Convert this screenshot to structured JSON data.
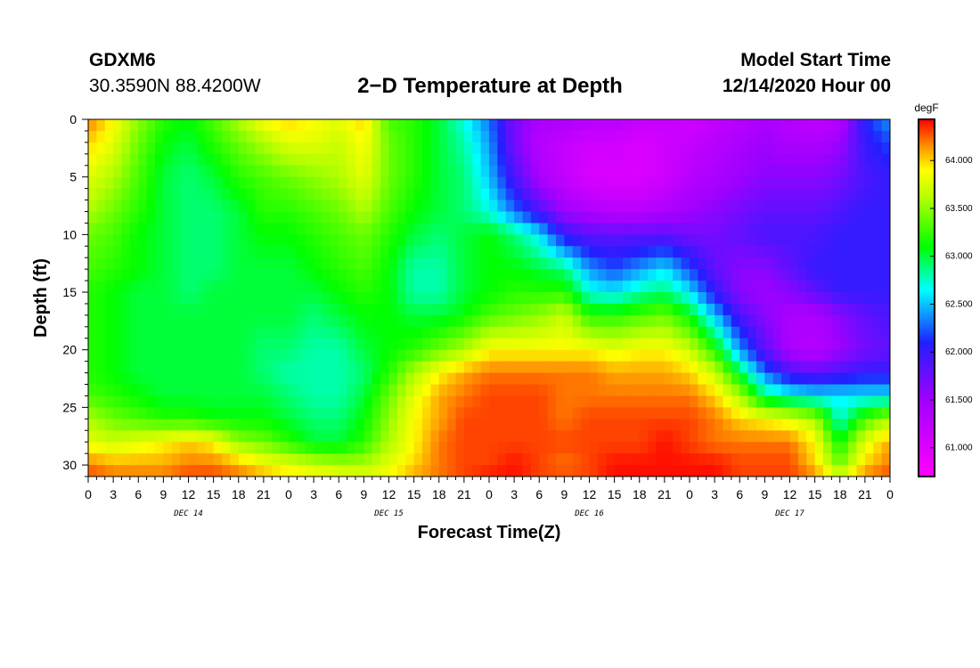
{
  "header": {
    "station": "GDXM6",
    "coords": "30.3590N 88.4200W",
    "title": "2−D Temperature at Depth",
    "start_label": "Model Start Time",
    "start_value": "12/14/2020 Hour 00"
  },
  "chart_data": {
    "type": "heatmap",
    "title": "2−D Temperature at Depth",
    "xlabel": "Forecast Time(Z)",
    "ylabel": "Depth (ft)",
    "x_hours_range": [
      0,
      96
    ],
    "x_major_step_hours": 3,
    "x_tick_labels": [
      "0",
      "3",
      "6",
      "9",
      "12",
      "15",
      "18",
      "21",
      "0",
      "3",
      "6",
      "9",
      "12",
      "15",
      "18",
      "21",
      "0",
      "3",
      "6",
      "9",
      "12",
      "15",
      "18",
      "21",
      "0",
      "3",
      "6",
      "9",
      "12",
      "15",
      "18",
      "21",
      "0"
    ],
    "day_labels": [
      {
        "label": "DEC 14",
        "hour": 12
      },
      {
        "label": "DEC 15",
        "hour": 36
      },
      {
        "label": "DEC 16",
        "hour": 60
      },
      {
        "label": "DEC 17",
        "hour": 84
      }
    ],
    "y_range": [
      0,
      31
    ],
    "y_ticks": [
      0,
      5,
      10,
      15,
      20,
      25,
      30
    ],
    "y_reversed": true,
    "colorbar": {
      "unit": "degF",
      "min": 60.7,
      "max": 64.43,
      "labels": [
        "64.000",
        "63.500",
        "63.000",
        "62.500",
        "62.000",
        "61.500",
        "61.000"
      ],
      "label_values": [
        64.0,
        63.5,
        63.0,
        62.5,
        62.0,
        61.5,
        61.0
      ],
      "stops": [
        {
          "v": 60.7,
          "color": "#ff00ff"
        },
        {
          "v": 61.5,
          "color": "#a000ff"
        },
        {
          "v": 62.1,
          "color": "#2020ff"
        },
        {
          "v": 62.65,
          "color": "#00ffff"
        },
        {
          "v": 63.1,
          "color": "#00ff00"
        },
        {
          "v": 63.6,
          "color": "#b0ff00"
        },
        {
          "v": 63.9,
          "color": "#ffff00"
        },
        {
          "v": 64.15,
          "color": "#ff9000"
        },
        {
          "v": 64.43,
          "color": "#ff0000"
        }
      ]
    },
    "depths_ft": [
      0,
      2,
      5,
      8,
      10,
      13,
      15,
      17,
      20,
      22,
      24,
      26,
      28,
      30,
      31
    ],
    "times_hours": [
      0,
      3,
      6,
      9,
      12,
      15,
      18,
      21,
      24,
      27,
      30,
      33,
      36,
      39,
      42,
      45,
      48,
      51,
      54,
      57,
      60,
      63,
      66,
      69,
      72,
      75,
      78,
      81,
      84,
      87,
      90,
      93,
      96
    ],
    "temperature_degF": [
      [
        64.2,
        63.9,
        63.5,
        63.2,
        63.1,
        63.3,
        63.6,
        63.9,
        64.0,
        63.9,
        63.8,
        64.0,
        63.3,
        63.2,
        63.0,
        62.7,
        62.3,
        61.7,
        61.4,
        61.4,
        61.3,
        61.3,
        61.2,
        61.2,
        61.1,
        61.2,
        61.3,
        61.4,
        61.3,
        61.2,
        61.3,
        62.1,
        62.4
      ],
      [
        64.0,
        63.8,
        63.4,
        63.1,
        63.0,
        63.2,
        63.4,
        63.6,
        63.8,
        63.8,
        63.7,
        63.9,
        63.4,
        63.2,
        63.0,
        62.8,
        62.4,
        61.7,
        61.3,
        61.2,
        61.1,
        61.1,
        61.0,
        61.1,
        61.2,
        61.3,
        61.4,
        61.5,
        61.4,
        61.4,
        61.5,
        62.0,
        62.2
      ],
      [
        63.8,
        63.6,
        63.3,
        63.0,
        62.9,
        63.0,
        63.2,
        63.3,
        63.4,
        63.5,
        63.6,
        63.8,
        63.4,
        63.2,
        63.0,
        62.9,
        62.5,
        61.9,
        61.4,
        61.2,
        61.0,
        61.0,
        61.0,
        61.1,
        61.3,
        61.4,
        61.5,
        61.6,
        61.6,
        61.6,
        61.7,
        61.9,
        62.0
      ],
      [
        63.6,
        63.4,
        63.2,
        63.0,
        62.9,
        62.9,
        63.0,
        63.2,
        63.2,
        63.3,
        63.4,
        63.6,
        63.3,
        63.1,
        63.0,
        62.9,
        62.7,
        62.3,
        61.9,
        61.5,
        61.4,
        61.3,
        61.3,
        61.4,
        61.5,
        61.6,
        61.7,
        61.8,
        61.8,
        61.8,
        61.9,
        62.0,
        62.0
      ],
      [
        63.4,
        63.3,
        63.1,
        63.0,
        62.9,
        62.9,
        63.0,
        63.1,
        63.1,
        63.2,
        63.3,
        63.4,
        63.2,
        63.0,
        62.9,
        63.0,
        63.1,
        62.9,
        62.6,
        62.0,
        61.8,
        61.8,
        61.8,
        61.8,
        61.7,
        61.7,
        61.8,
        61.9,
        61.9,
        61.9,
        62.0,
        62.0,
        62.0
      ],
      [
        63.3,
        63.2,
        63.1,
        63.0,
        62.9,
        62.9,
        63.0,
        63.0,
        63.0,
        63.1,
        63.2,
        63.3,
        63.1,
        62.8,
        62.8,
        63.0,
        63.1,
        63.1,
        63.0,
        62.9,
        62.4,
        62.2,
        62.4,
        62.6,
        62.2,
        61.8,
        61.6,
        61.6,
        61.8,
        62.0,
        62.0,
        62.0,
        62.0
      ],
      [
        63.2,
        63.1,
        63.0,
        63.0,
        62.9,
        63.0,
        63.0,
        63.0,
        63.0,
        63.0,
        63.1,
        63.2,
        63.1,
        62.8,
        62.8,
        63.0,
        63.1,
        63.2,
        63.2,
        63.2,
        62.7,
        62.6,
        62.8,
        62.9,
        62.6,
        62.0,
        61.6,
        61.5,
        61.6,
        61.8,
        62.0,
        62.0,
        62.0
      ],
      [
        63.2,
        63.1,
        63.0,
        63.0,
        63.0,
        63.0,
        63.0,
        63.0,
        63.0,
        62.9,
        63.0,
        63.1,
        63.1,
        63.0,
        63.0,
        63.1,
        63.3,
        63.4,
        63.5,
        63.7,
        63.2,
        63.2,
        63.3,
        63.4,
        63.1,
        62.5,
        61.9,
        61.6,
        61.4,
        61.4,
        61.6,
        61.8,
        61.9
      ],
      [
        63.2,
        63.1,
        63.0,
        63.0,
        63.0,
        63.0,
        63.0,
        62.9,
        62.9,
        62.8,
        62.8,
        63.0,
        63.1,
        63.2,
        63.4,
        63.6,
        63.9,
        63.9,
        63.9,
        63.9,
        63.9,
        63.8,
        63.9,
        63.9,
        63.7,
        63.2,
        62.4,
        61.8,
        61.4,
        61.3,
        61.5,
        61.7,
        61.8
      ],
      [
        63.2,
        63.1,
        63.0,
        63.0,
        63.0,
        63.0,
        63.0,
        62.9,
        62.8,
        62.8,
        62.8,
        62.9,
        63.2,
        63.6,
        63.9,
        64.1,
        64.2,
        64.2,
        64.2,
        64.2,
        64.2,
        64.1,
        64.1,
        64.1,
        64.0,
        63.7,
        63.0,
        62.3,
        61.9,
        61.8,
        61.9,
        62.0,
        62.0
      ],
      [
        63.3,
        63.2,
        63.1,
        63.0,
        63.0,
        63.0,
        63.0,
        63.0,
        62.9,
        62.8,
        62.8,
        63.0,
        63.4,
        63.8,
        64.1,
        64.2,
        64.3,
        64.3,
        64.3,
        64.2,
        64.2,
        64.2,
        64.2,
        64.2,
        64.2,
        64.0,
        63.6,
        62.9,
        62.7,
        62.6,
        62.6,
        62.6,
        62.6
      ],
      [
        63.6,
        63.4,
        63.3,
        63.2,
        63.2,
        63.1,
        63.1,
        63.1,
        63.0,
        62.9,
        62.9,
        63.1,
        63.5,
        63.9,
        64.1,
        64.3,
        64.3,
        64.3,
        64.3,
        64.2,
        64.3,
        64.3,
        64.3,
        64.3,
        64.3,
        64.2,
        64.0,
        63.9,
        63.8,
        63.6,
        62.7,
        63.3,
        63.6
      ],
      [
        63.8,
        63.7,
        63.8,
        63.9,
        64.0,
        63.9,
        63.5,
        63.4,
        63.2,
        63.0,
        63.0,
        63.2,
        63.6,
        63.9,
        64.2,
        64.3,
        64.3,
        64.3,
        64.3,
        64.3,
        64.3,
        64.3,
        64.3,
        64.4,
        64.3,
        64.2,
        64.2,
        64.2,
        64.2,
        63.9,
        63.1,
        63.8,
        64.1
      ],
      [
        64.2,
        64.1,
        64.1,
        64.1,
        64.2,
        64.2,
        64.1,
        63.9,
        63.8,
        63.7,
        63.6,
        63.6,
        63.8,
        64.0,
        64.2,
        64.3,
        64.3,
        64.4,
        64.3,
        64.2,
        64.3,
        64.4,
        64.4,
        64.4,
        64.4,
        64.4,
        64.3,
        64.3,
        64.3,
        64.0,
        63.4,
        64.0,
        64.2
      ],
      [
        64.3,
        64.2,
        64.2,
        64.2,
        64.3,
        64.3,
        64.2,
        64.1,
        64.0,
        63.9,
        63.9,
        63.8,
        63.9,
        64.1,
        64.2,
        64.3,
        64.4,
        64.4,
        64.3,
        64.3,
        64.3,
        64.4,
        64.4,
        64.4,
        64.4,
        64.4,
        64.3,
        64.3,
        64.3,
        64.2,
        63.8,
        64.2,
        64.3
      ]
    ]
  }
}
